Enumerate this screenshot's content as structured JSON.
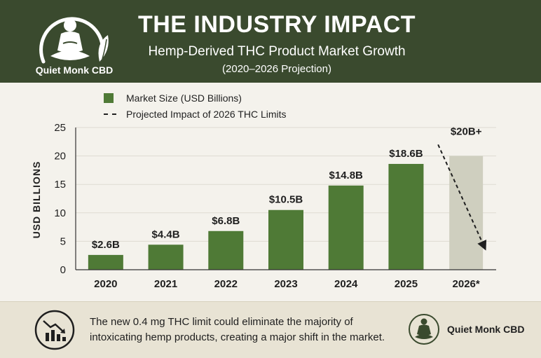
{
  "header": {
    "title": "THE INDUSTRY IMPACT",
    "subtitle": "Hemp-Derived THC Product Market Growth",
    "subsubtitle": "(2020–2026 Projection)",
    "brand": "Quiet Monk CBD"
  },
  "legend": {
    "bars": "Market Size (USD Billions)",
    "dashed": "Projected Impact of 2026 THC Limits"
  },
  "chart_data": {
    "type": "bar",
    "categories": [
      "2020",
      "2021",
      "2022",
      "2023",
      "2024",
      "2025",
      "2026*"
    ],
    "values": [
      2.6,
      4.4,
      6.8,
      10.5,
      14.8,
      18.6,
      20
    ],
    "data_labels": [
      "$2.6B",
      "$4.4B",
      "$6.8B",
      "$10.5B",
      "$14.8B",
      "$18.6B",
      "$20B+"
    ],
    "ylabel": "USD BILLIONS",
    "xlabel": "",
    "ylim": [
      0,
      25
    ],
    "yticks": [
      0,
      5,
      10,
      15,
      20,
      25
    ],
    "grid": true,
    "colors": {
      "actual": "#4f7a36",
      "projected": "#cfcfbf"
    },
    "projected_index": 6,
    "annotation": {
      "type": "dashed-arrow-down",
      "category": "2026*",
      "from_value": 22,
      "to_value": 4
    }
  },
  "footer": {
    "text": "The new 0.4 mg THC limit could eliminate the majority of intoxicating hemp products, creating a major shift in the market.",
    "brand": "Quiet Monk CBD",
    "icon": "declining-chart-icon"
  },
  "colors": {
    "header_bg": "#3a4a2e",
    "page_bg": "#f4f2ec",
    "footer_bg": "#e8e3d4",
    "accent_green": "#4f7a36"
  }
}
